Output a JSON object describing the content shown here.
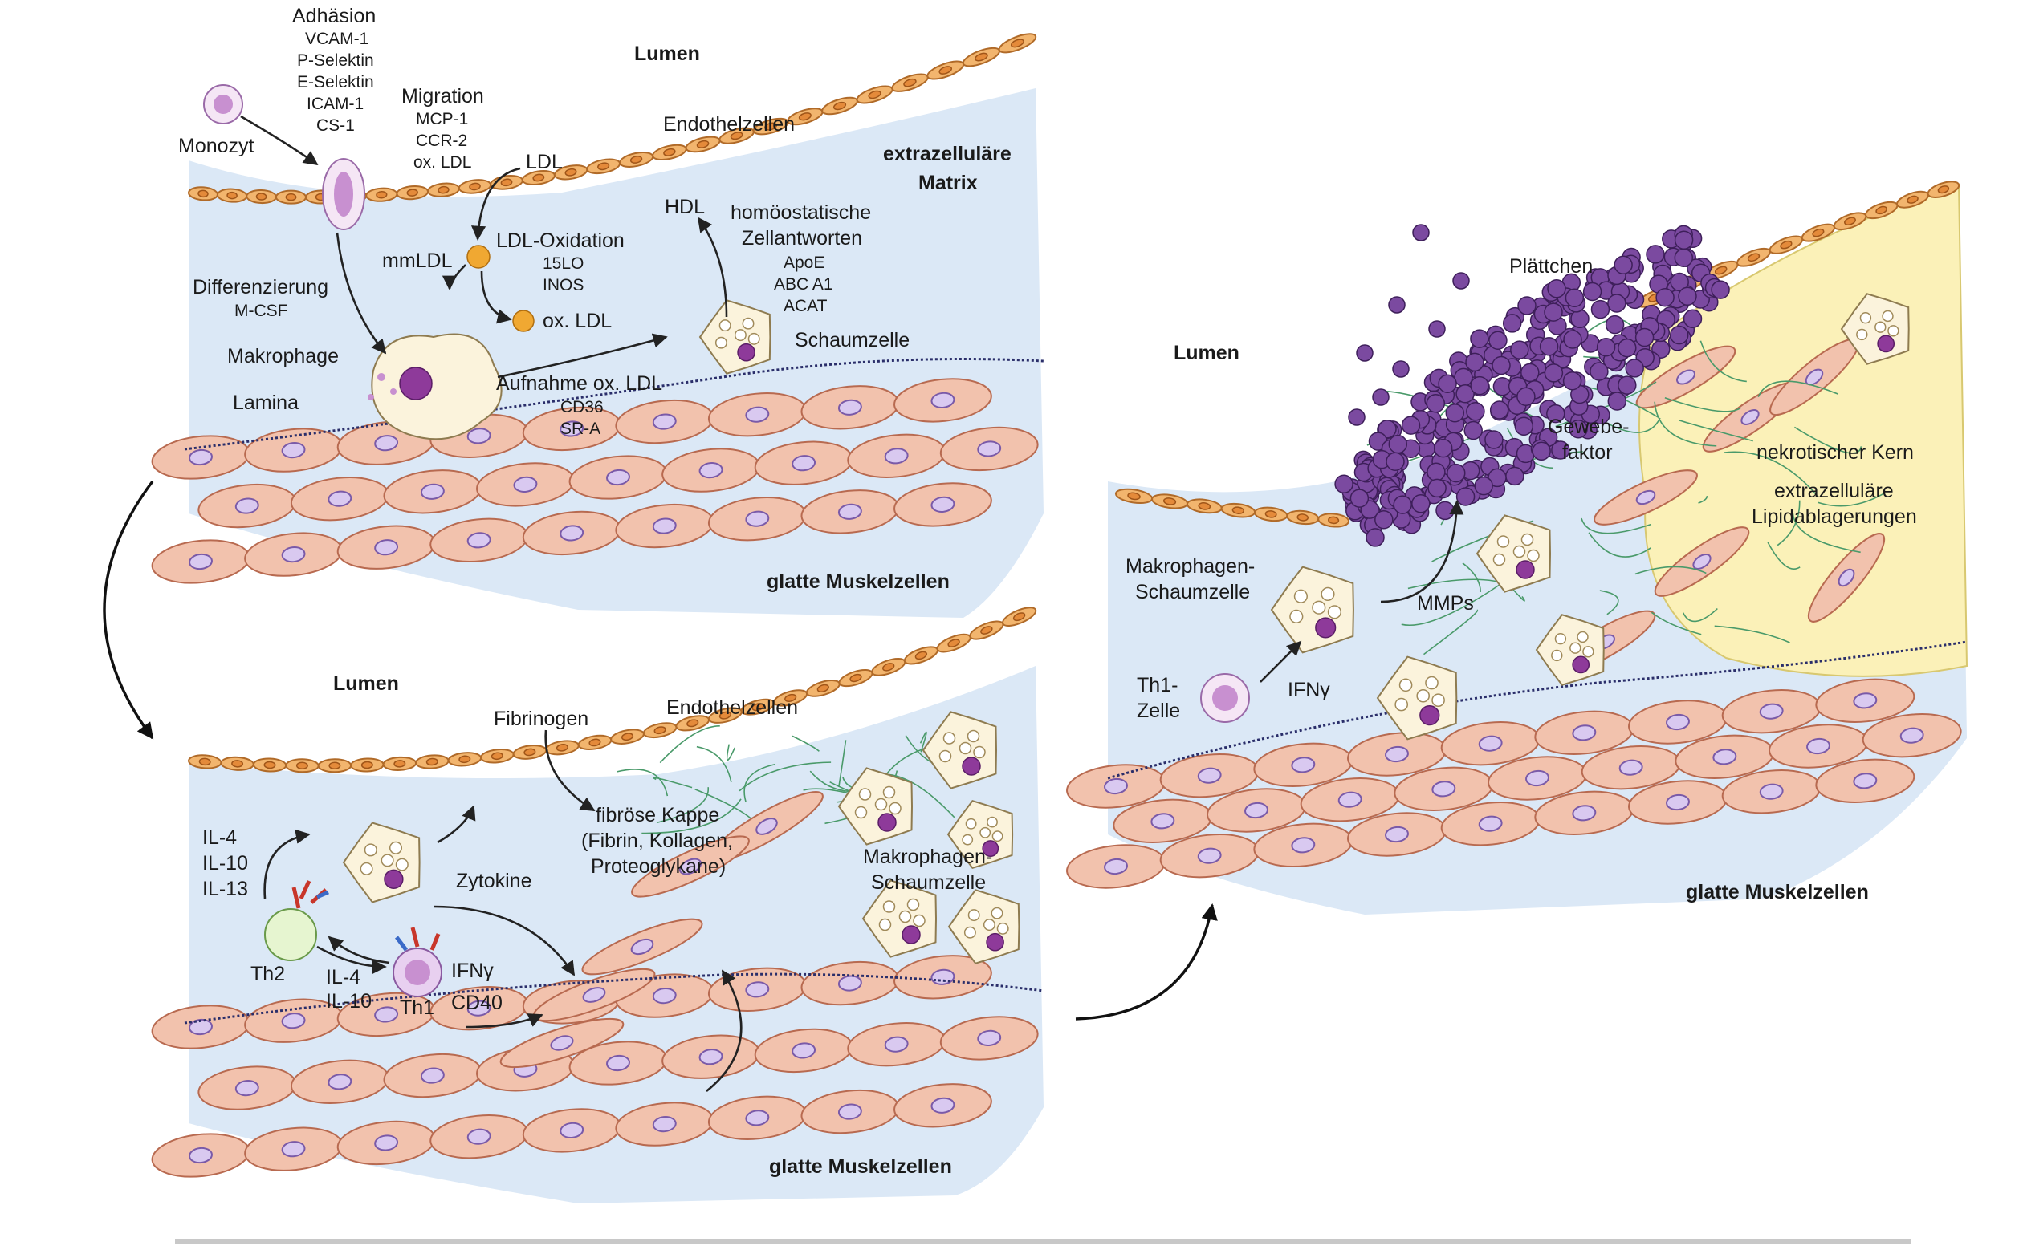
{
  "colors": {
    "lumen": "#dbe8f6",
    "endothelium": "#f2b56e",
    "smooth_muscle": "#f2c2ad",
    "foam_cell": "#fbf3dc",
    "platelets": "#7b4aa0",
    "fibers": "#4a9a6a",
    "necrotic_core": "#fbf1b8"
  },
  "panel1": {
    "lumen": "Lumen",
    "endothelial_cells": "Endothelzellen",
    "ecm_line1": "extrazelluläre",
    "ecm_line2": "Matrix",
    "adhesion_title": "Adhäsion",
    "adhesion_items": [
      "VCAM-1",
      "P-Selektin",
      "E-Selektin",
      "ICAM-1",
      "CS-1"
    ],
    "monocyte": "Monozyt",
    "migration_title": "Migration",
    "migration_items": [
      "MCP-1",
      "CCR-2",
      "ox. LDL"
    ],
    "ldl": "LDL",
    "hdl": "HDL",
    "homeostatic_line1": "homöostatische",
    "homeostatic_line2": "Zellantworten",
    "homeostatic_items": [
      "ApoE",
      "ABC A1",
      "ACAT"
    ],
    "mmldl": "mmLDL",
    "ldl_oxidation": "LDL-Oxidation",
    "oxidation_items": [
      "15LO",
      "INOS"
    ],
    "ox_ldl": "ox. LDL",
    "differentiation": "Differenzierung",
    "mcsf": "M-CSF",
    "macrophage": "Makrophage",
    "foam_cell": "Schaumzelle",
    "uptake": "Aufnahme ox. LDL",
    "uptake_items": [
      "CD36",
      "SR-A"
    ],
    "lamina": "Lamina",
    "smooth_muscle_cells": "glatte Muskelzellen"
  },
  "panel2": {
    "lumen": "Lumen",
    "fibrinogen": "Fibrinogen",
    "endothelial_cells": "Endothelzellen",
    "fibrous_cap_line1": "fibröse Kappe",
    "fibrous_cap_line2": "(Fibrin, Kollagen,",
    "fibrous_cap_line3": "Proteoglykane)",
    "macrophage_foam_line1": "Makrophagen-",
    "macrophage_foam_line2": "Schaumzelle",
    "interleukins_th2": [
      "IL-4",
      "IL-10",
      "IL-13"
    ],
    "cytokines": "Zytokine",
    "th2": "Th2",
    "th1": "Th1",
    "interleukins_th1": [
      "IL-4",
      "IL-10"
    ],
    "ifn": "IFNγ",
    "cd40": "CD40",
    "smooth_muscle_cells": "glatte Muskelzellen"
  },
  "panel3": {
    "lumen": "Lumen",
    "platelets": "Plättchen",
    "tissue_factor_line1": "Gewebe-",
    "tissue_factor_line2": "faktor",
    "necrotic_core": "nekrotischer Kern",
    "lipid_line1": "extrazelluläre",
    "lipid_line2": "Lipidablagerungen",
    "macrophage_foam_line1": "Makrophagen-",
    "macrophage_foam_line2": "Schaumzelle",
    "mmps": "MMPs",
    "th1_line1": "Th1-",
    "th1_line2": "Zelle",
    "ifn": "IFNγ",
    "smooth_muscle_cells": "glatte Muskelzellen"
  }
}
